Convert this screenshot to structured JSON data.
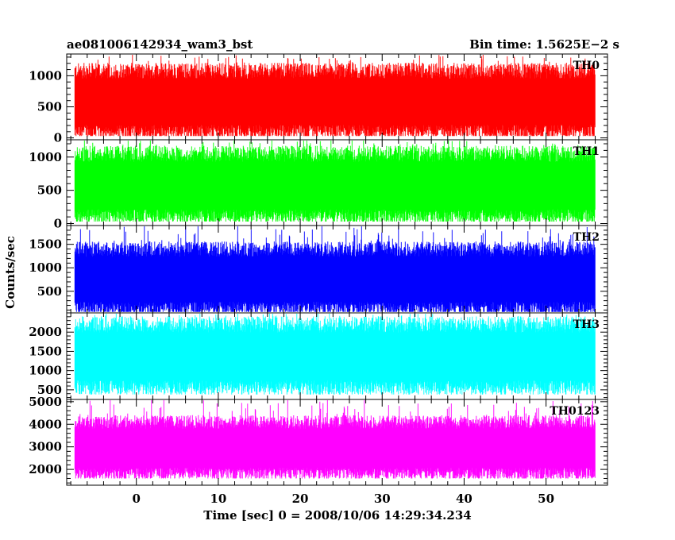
{
  "header": {
    "left_title": "ae081006142934_wam3_bst",
    "right_title": "Bin time: 1.5625E−2 s"
  },
  "chart_data": {
    "type": "line",
    "xlabel": "Time [sec] 0 = 2008/10/06 14:29:34.234",
    "ylabel": "Counts/sec",
    "xlim": [
      -8.5,
      57.5
    ],
    "data_xrange": [
      -7.5,
      56
    ],
    "xticks": [
      0,
      10,
      20,
      30,
      40,
      50
    ],
    "xtick_labels": [
      "0",
      "10",
      "20",
      "30",
      "40",
      "50"
    ],
    "grid": false,
    "panels": [
      {
        "label": "TH0",
        "color": "#ff0000",
        "ylim": [
          -30,
          1350
        ],
        "yticks": [
          0,
          500,
          1000
        ],
        "ytick_labels": [
          "0",
          "500",
          "1000"
        ],
        "mean": 570,
        "spread_low": 90,
        "spread_high": 1080,
        "peak": 1350,
        "floor": 30
      },
      {
        "label": "TH1",
        "color": "#00ff00",
        "ylim": [
          -30,
          1260
        ],
        "yticks": [
          0,
          500,
          1000
        ],
        "ytick_labels": [
          "0",
          "500",
          "1000"
        ],
        "mean": 560,
        "spread_low": 100,
        "spread_high": 1050,
        "peak": 1260,
        "floor": 30
      },
      {
        "label": "TH2",
        "color": "#0000ff",
        "ylim": [
          40,
          1900
        ],
        "yticks": [
          500,
          1000,
          1500
        ],
        "ytick_labels": [
          "500",
          "1000",
          "1500"
        ],
        "mean": 750,
        "spread_low": 120,
        "spread_high": 1400,
        "peak": 1900,
        "floor": 60
      },
      {
        "label": "TH3",
        "color": "#00ffff",
        "ylim": [
          250,
          2500
        ],
        "yticks": [
          500,
          1000,
          1500,
          2000
        ],
        "ytick_labels": [
          "500",
          "1000",
          "1500",
          "2000"
        ],
        "mean": 1350,
        "spread_low": 550,
        "spread_high": 2200,
        "peak": 2500,
        "floor": 380
      },
      {
        "label": "TH0123",
        "color": "#ff00ff",
        "ylim": [
          1300,
          5100
        ],
        "yticks": [
          2000,
          3000,
          4000,
          5000
        ],
        "ytick_labels": [
          "2000",
          "3000",
          "4000",
          "5000"
        ],
        "mean": 2900,
        "spread_low": 1800,
        "spread_high": 4100,
        "peak": 5100,
        "floor": 1600
      }
    ]
  }
}
